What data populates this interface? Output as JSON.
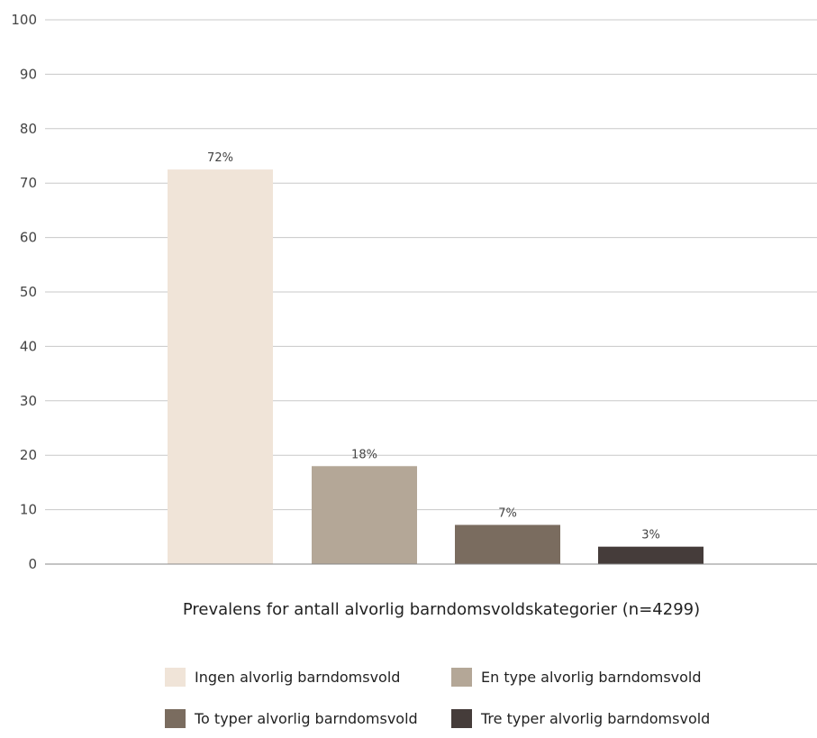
{
  "chart_data": {
    "type": "bar",
    "categories": [
      "Ingen alvorlig barndomsvold",
      "En type alvorlig barndomsvold",
      "To typer alvorlig barndomsvold",
      "Tre typer alvorlig barndomsvold"
    ],
    "values": [
      72.5,
      18,
      7.2,
      3.2
    ],
    "data_labels": [
      "72%",
      "18%",
      "7%",
      "3%"
    ],
    "colors": [
      "#f0e4d8",
      "#b4a797",
      "#7a6c5f",
      "#453c3a"
    ],
    "title": "",
    "xlabel": "Prevalens for antall alvorlig barndomsvoldskategorier (n=4299)",
    "ylabel": "",
    "ylim": [
      0,
      100
    ],
    "yticks": [
      "0",
      "10",
      "20",
      "30",
      "40",
      "50",
      "60",
      "70",
      "80",
      "90",
      "100"
    ],
    "grid": true,
    "gridline_color": "#c8c8c8",
    "axis_color": "#888888",
    "legend_position": "bottom"
  }
}
